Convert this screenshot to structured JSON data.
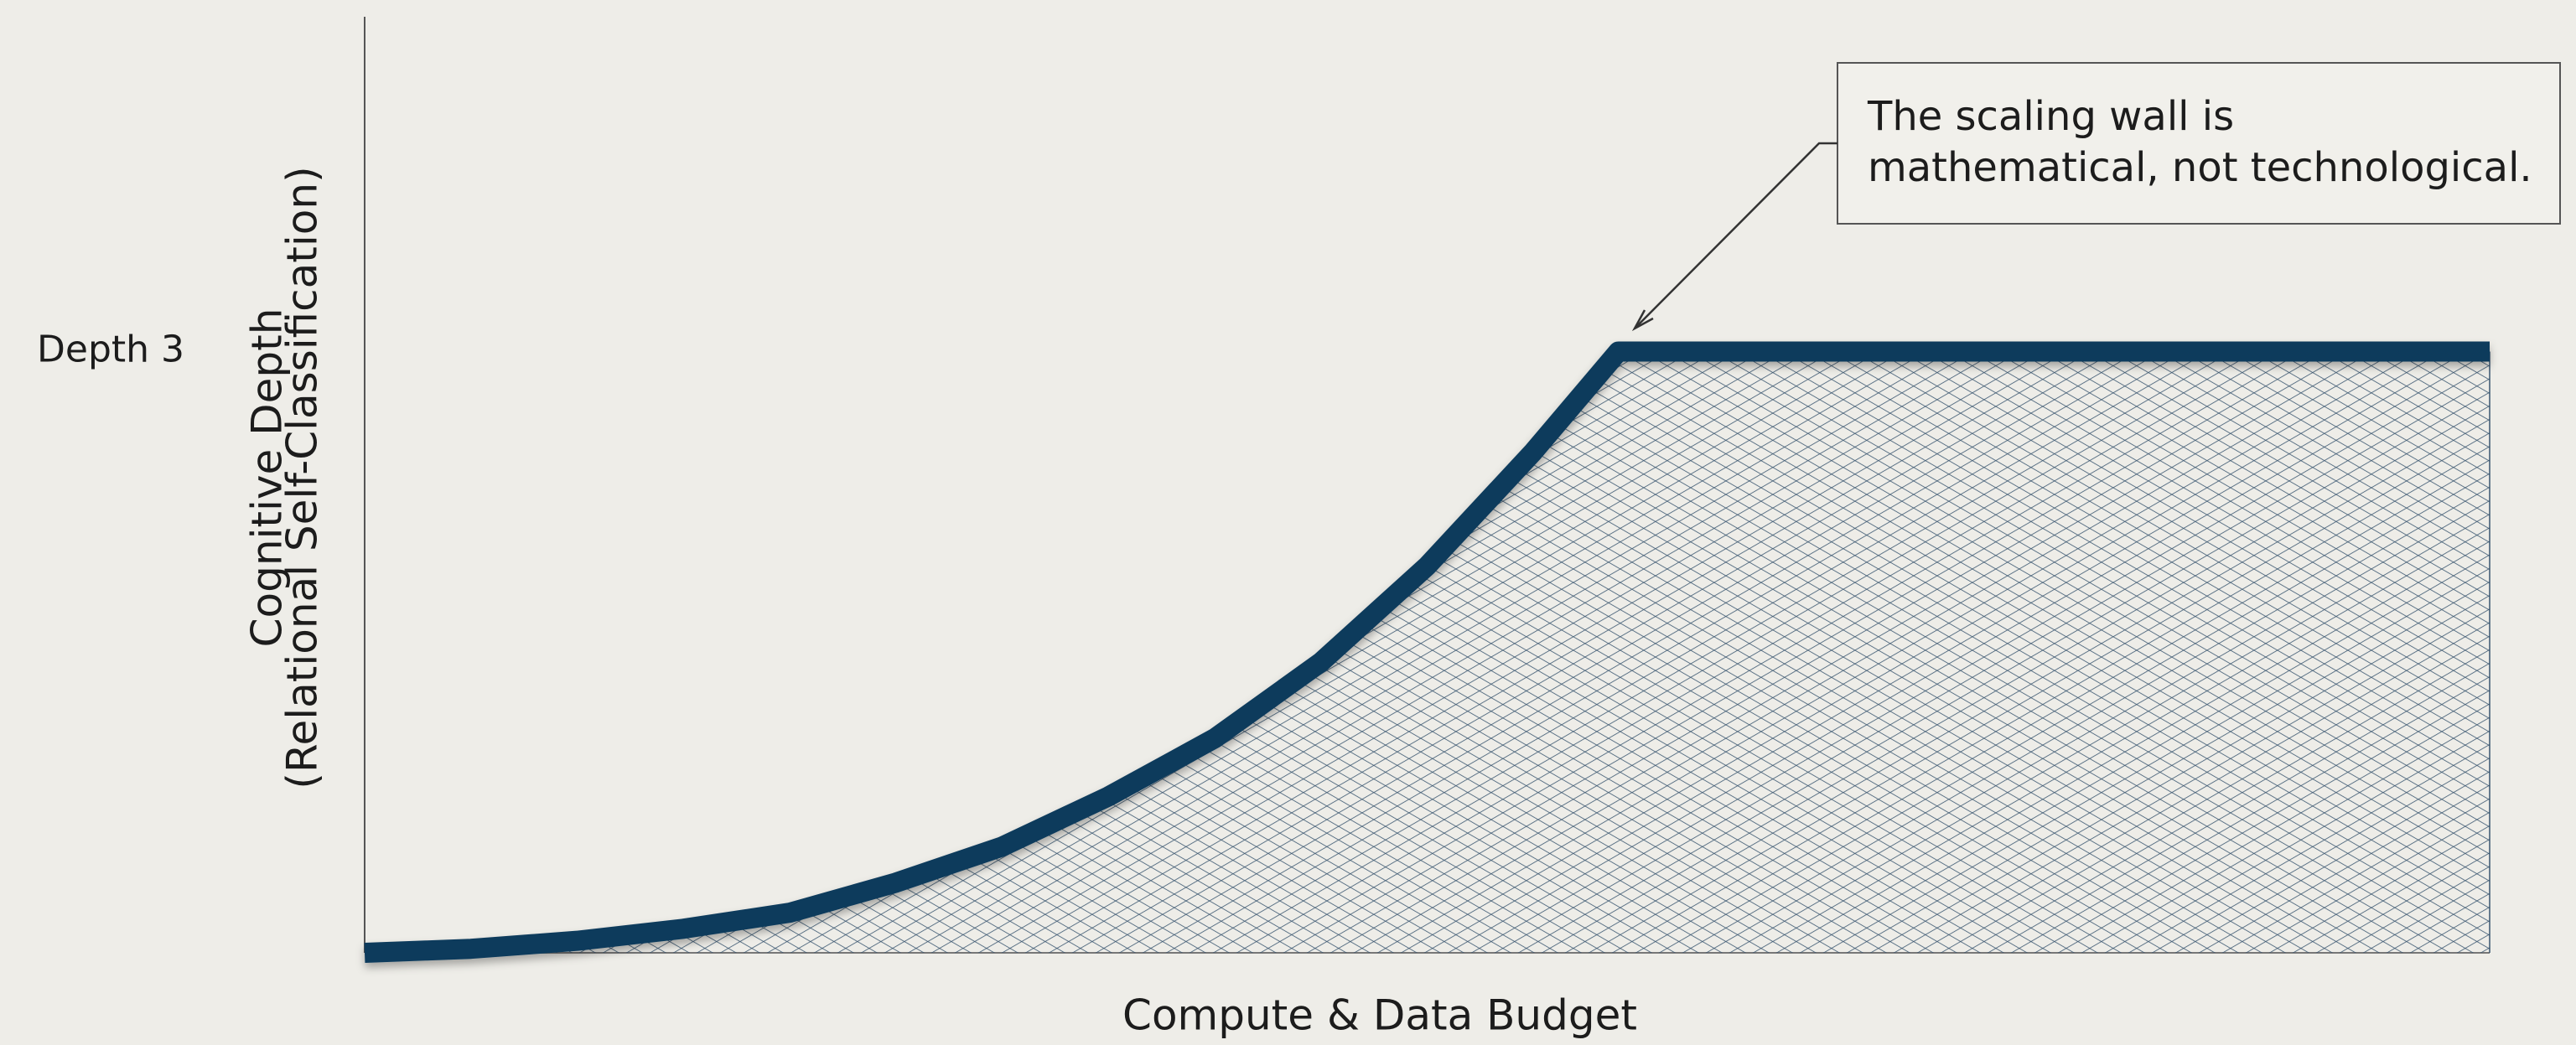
{
  "chart_data": {
    "type": "line",
    "x": [
      0,
      0.5,
      1,
      1.5,
      2,
      2.5,
      3,
      3.5,
      4,
      4.5,
      5,
      5.5,
      5.9,
      10
    ],
    "values": [
      0,
      0.02,
      0.06,
      0.12,
      0.2,
      0.35,
      0.53,
      0.78,
      1.07,
      1.45,
      1.93,
      2.5,
      3,
      3
    ],
    "color": "#0f3b5c",
    "hatch_color": "#3a5670",
    "threshold_color": "#b8734a",
    "xlim": [
      0,
      10
    ],
    "ylim": [
      0,
      4.67
    ],
    "yticks": [
      {
        "value": 3,
        "label": "Depth 3"
      }
    ],
    "xlabel": "Compute & Data Budget",
    "ylabel": [
      "Cognitive Depth",
      "(Relational Self-Classification)"
    ],
    "annotation": [
      "The scaling wall is",
      "mathematical, not technological."
    ]
  }
}
